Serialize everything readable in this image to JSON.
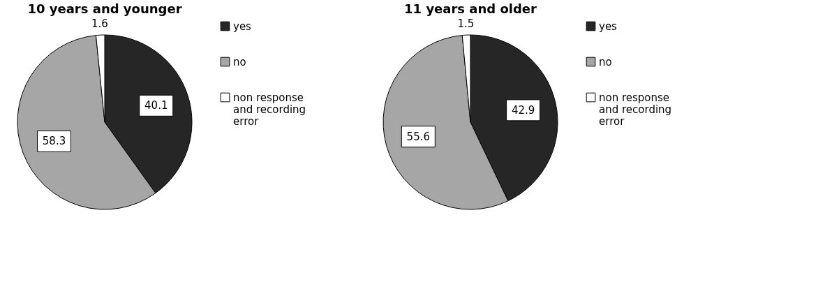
{
  "chart_data": [
    {
      "type": "pie",
      "title": "10 years and younger",
      "categories": [
        "yes",
        "no",
        "non response and recording error"
      ],
      "values": [
        40.1,
        58.3,
        1.6
      ],
      "colors": [
        "#262626",
        "#a6a6a6",
        "#ffffff"
      ],
      "data_labels": true,
      "legend": "right"
    },
    {
      "type": "pie",
      "title": "11 years and older",
      "categories": [
        "yes",
        "no",
        "non response and recording error"
      ],
      "values": [
        42.9,
        55.6,
        1.5
      ],
      "colors": [
        "#262626",
        "#a6a6a6",
        "#ffffff"
      ],
      "data_labels": true,
      "legend": "right"
    }
  ]
}
